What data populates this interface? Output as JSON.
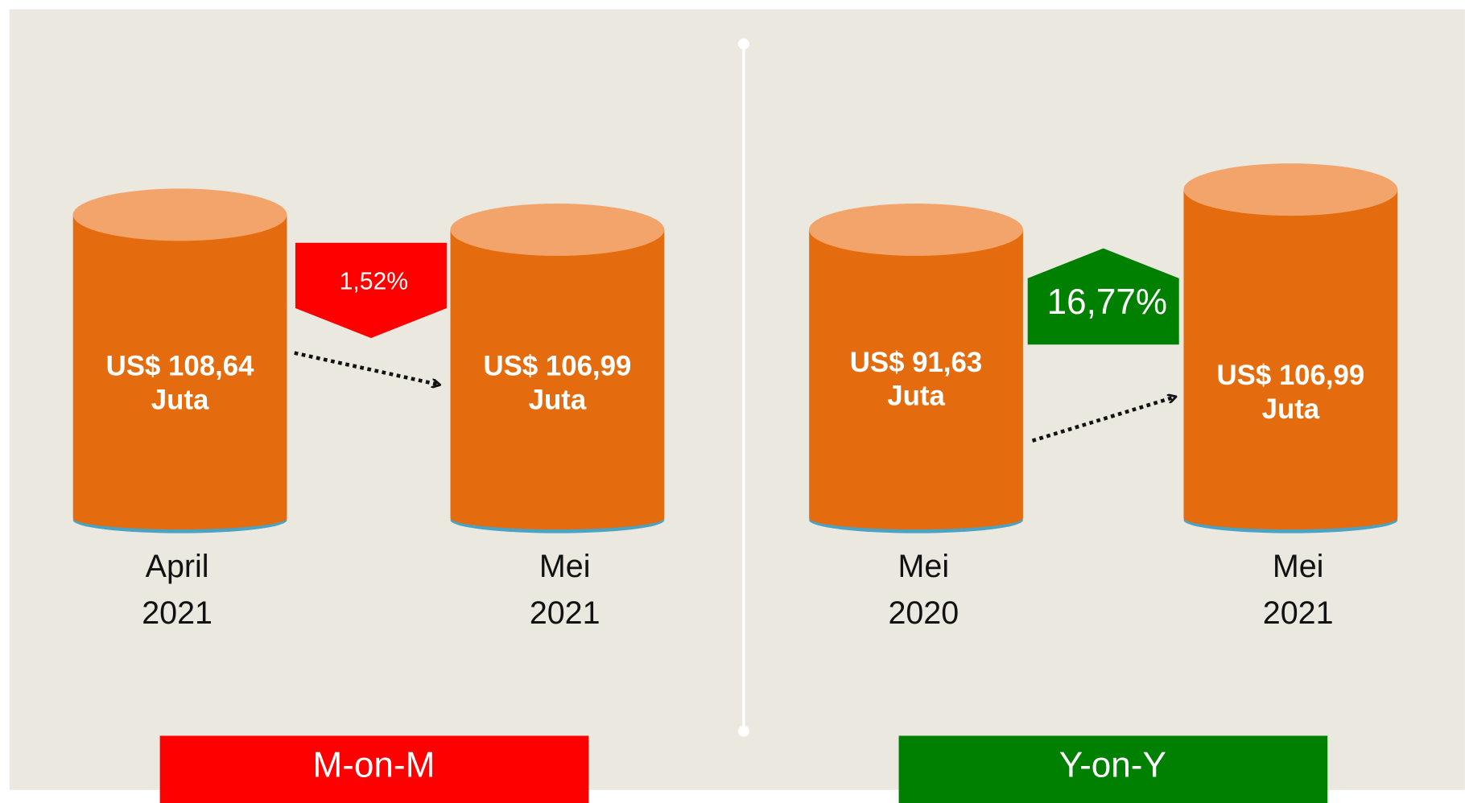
{
  "panels": [
    {
      "label": "M-on-M",
      "change": "1,52%",
      "cylinders": [
        {
          "amount": "US$ 108,64",
          "unit": "Juta",
          "period": [
            "April",
            "2021"
          ]
        },
        {
          "amount": "US$ 106,99",
          "unit": "Juta",
          "period": [
            "Mei",
            "2021"
          ]
        }
      ]
    },
    {
      "label": "Y-on-Y",
      "change": "16,77%",
      "cylinders": [
        {
          "amount": "US$ 91,63",
          "unit": "Juta",
          "period": [
            "Mei",
            "2020"
          ]
        },
        {
          "amount": "US$ 106,99",
          "unit": "Juta",
          "period": [
            "Mei",
            "2021"
          ]
        }
      ]
    }
  ]
}
